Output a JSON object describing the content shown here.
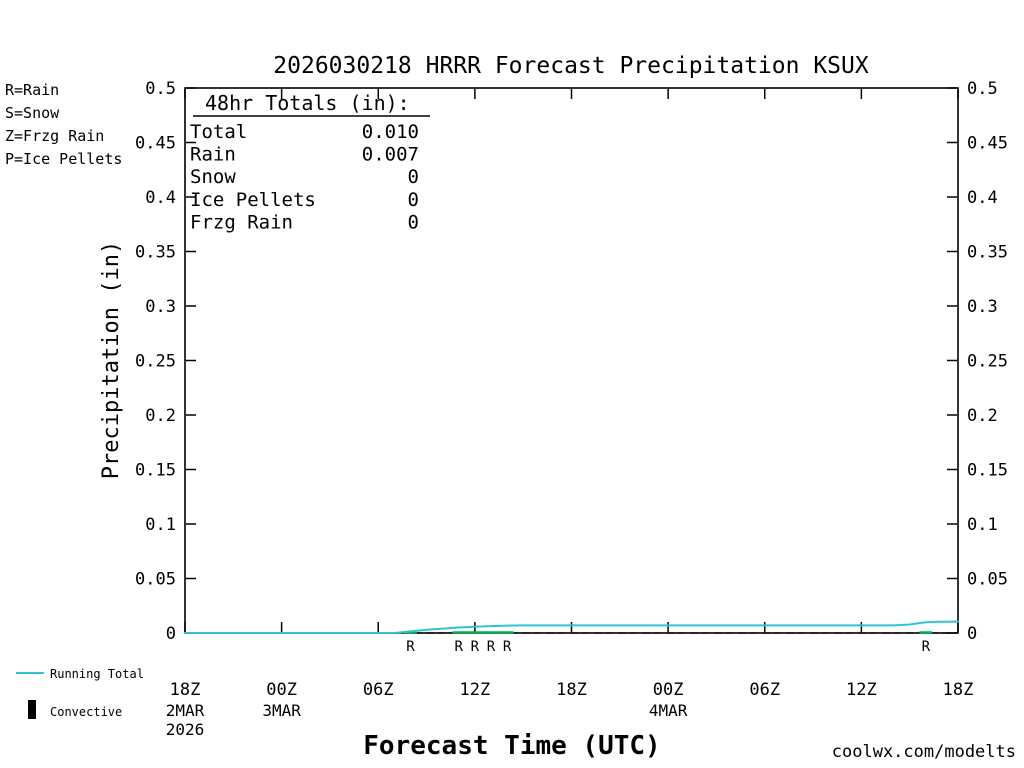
{
  "title": "2026030218 HRRR Forecast Precipitation KSUX",
  "ylabel": "Precipitation (in)",
  "xlabel": "Forecast Time (UTC)",
  "watermark": "coolwx.com/modelts",
  "watermark_color": "#ff5f5f",
  "type_legend": [
    {
      "label": "R=Rain",
      "color": "#00b050"
    },
    {
      "label": "S=Snow",
      "color": "#3b3bff"
    },
    {
      "label": "Z=Frzg Rain",
      "color": "#ff9900"
    },
    {
      "label": "P=Ice Pellets",
      "color": "#ff22aa"
    }
  ],
  "totals_box": {
    "heading": " 48hr Totals (in):",
    "rows": [
      {
        "label": "Total",
        "value": "0.010"
      },
      {
        "label": "Rain",
        "value": "0.007"
      },
      {
        "label": "Snow",
        "value": "0"
      },
      {
        "label": "Ice Pellets",
        "value": "0"
      },
      {
        "label": "Frzg Rain",
        "value": "0"
      }
    ]
  },
  "bottom_legend": [
    {
      "label": "Running Total",
      "swatch": "line",
      "color": "#2fc4d2"
    },
    {
      "label": "Convective",
      "swatch": "bar",
      "color": "#000000"
    }
  ],
  "chart_data": {
    "type": "line",
    "title": "2026030218 HRRR Forecast Precipitation KSUX",
    "xlabel": "Forecast Time (UTC)",
    "ylabel": "Precipitation (in)",
    "ylim": [
      0,
      0.5
    ],
    "xlim_hours": [
      0,
      48
    ],
    "grid": false,
    "yticks": [
      {
        "v": 0.0,
        "label": "0"
      },
      {
        "v": 0.05,
        "label": "0.05"
      },
      {
        "v": 0.1,
        "label": "0.1"
      },
      {
        "v": 0.15,
        "label": "0.15"
      },
      {
        "v": 0.2,
        "label": "0.2"
      },
      {
        "v": 0.25,
        "label": "0.25"
      },
      {
        "v": 0.3,
        "label": "0.3"
      },
      {
        "v": 0.35,
        "label": "0.35"
      },
      {
        "v": 0.4,
        "label": "0.4"
      },
      {
        "v": 0.45,
        "label": "0.45"
      },
      {
        "v": 0.5,
        "label": "0.5"
      }
    ],
    "xticks": [
      {
        "hour": 0,
        "label": "18Z"
      },
      {
        "hour": 6,
        "label": "00Z"
      },
      {
        "hour": 12,
        "label": "06Z"
      },
      {
        "hour": 18,
        "label": "12Z"
      },
      {
        "hour": 24,
        "label": "18Z"
      },
      {
        "hour": 30,
        "label": "00Z"
      },
      {
        "hour": 36,
        "label": "06Z"
      },
      {
        "hour": 42,
        "label": "12Z"
      },
      {
        "hour": 48,
        "label": "18Z"
      }
    ],
    "date_labels": [
      {
        "hour": 0,
        "lines": [
          "2MAR",
          "2026"
        ]
      },
      {
        "hour": 6,
        "lines": [
          "3MAR"
        ]
      },
      {
        "hour": 30,
        "lines": [
          "4MAR"
        ]
      }
    ],
    "zero_line_dashed": true,
    "series": [
      {
        "name": "Running Total",
        "color": "#2fc4d2",
        "points": [
          [
            0,
            0
          ],
          [
            7,
            0
          ],
          [
            13,
            0
          ],
          [
            14,
            0.0015
          ],
          [
            15,
            0.003
          ],
          [
            16,
            0.004
          ],
          [
            17,
            0.005
          ],
          [
            18,
            0.0057
          ],
          [
            19,
            0.0063
          ],
          [
            20,
            0.0068
          ],
          [
            21,
            0.007
          ],
          [
            27,
            0.007
          ],
          [
            33,
            0.007
          ],
          [
            39,
            0.007
          ],
          [
            44,
            0.007
          ],
          [
            45,
            0.0078
          ],
          [
            45.8,
            0.0095
          ],
          [
            46.3,
            0.0102
          ],
          [
            48,
            0.0105
          ]
        ]
      }
    ],
    "rain_markers": {
      "symbol": "R",
      "color": "#00b050",
      "hours": [
        14,
        17,
        18,
        19,
        20,
        46
      ]
    },
    "rain_zero_segments": [
      [
        13.6,
        14.4
      ],
      [
        16.6,
        20.4
      ],
      [
        45.6,
        46.4
      ]
    ]
  }
}
